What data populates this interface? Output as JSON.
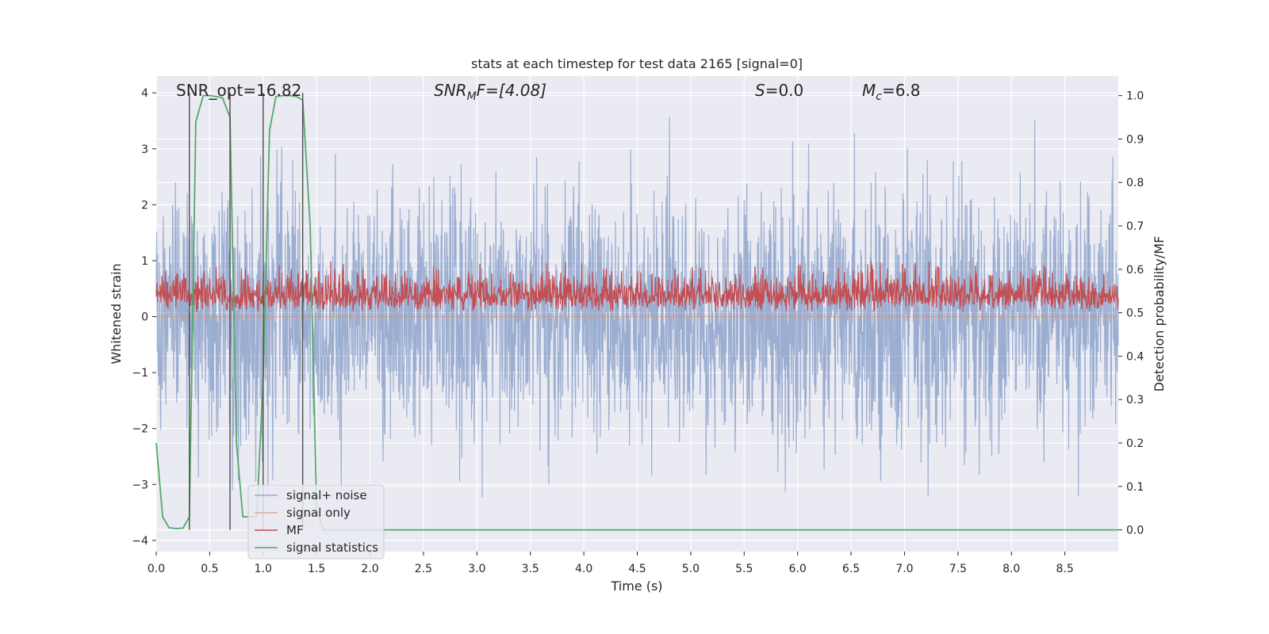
{
  "chart_data": {
    "type": "line",
    "title": "stats at each timestep for test data 2165 [signal=0]",
    "xlabel": "Time (s)",
    "ylabel_left": "Whitened strain",
    "ylabel_right": "Detection probability/MF",
    "xlim": [
      0.0,
      9.0
    ],
    "ylim_left": [
      -4.2,
      4.3
    ],
    "ylim_right": [
      -0.05,
      1.045
    ],
    "x_ticks": [
      0.0,
      0.5,
      1.0,
      1.5,
      2.0,
      2.5,
      3.0,
      3.5,
      4.0,
      4.5,
      5.0,
      5.5,
      6.0,
      6.5,
      7.0,
      7.5,
      8.0,
      8.5
    ],
    "x_tick_labels": [
      "0.0",
      "0.5",
      "1.0",
      "1.5",
      "2.0",
      "2.5",
      "3.0",
      "3.5",
      "4.0",
      "4.5",
      "5.0",
      "5.5",
      "6.0",
      "6.5",
      "7.0",
      "7.5",
      "8.0",
      "8.5"
    ],
    "y_left_ticks": [
      4,
      3,
      2,
      1,
      0,
      -1,
      -2,
      -3,
      -4
    ],
    "y_left_tick_labels": [
      "4",
      "3",
      "2",
      "1",
      "0",
      "−1",
      "−2",
      "−3",
      "−4"
    ],
    "y_right_ticks": [
      1.0,
      0.9,
      0.8,
      0.7,
      0.6,
      0.5,
      0.4,
      0.3,
      0.2,
      0.1,
      0.0
    ],
    "y_right_tick_labels": [
      "1.0",
      "0.9",
      "0.8",
      "0.7",
      "0.6",
      "0.5",
      "0.4",
      "0.3",
      "0.2",
      "0.1",
      "0.0"
    ],
    "grid": true,
    "legend_position": "lower-left",
    "annotations": {
      "snr_opt": "SNR_opt=16.82",
      "snr_mf_var": "SNR",
      "snr_mf_sub": "M",
      "snr_mf_rest": "F=[4.08]",
      "s_var": "S",
      "s_rest": "=0.0",
      "mc_var": "M",
      "mc_sub": "c",
      "mc_rest": "=6.8"
    },
    "series": [
      {
        "name": "signal+ noise",
        "color": "#4c72b0",
        "axis": "left",
        "note_range": [
          -4.0,
          3.9
        ]
      },
      {
        "name": "signal only",
        "color": "#dd8452",
        "axis": "left",
        "values_flat": 0
      },
      {
        "name": "MF",
        "color": "#c44e52",
        "axis": "right",
        "range": [
          0.5,
          0.62
        ]
      },
      {
        "name": "signal statistics",
        "color": "#55a868",
        "axis": "right",
        "x": [
          0.0,
          0.06,
          0.12,
          0.19,
          0.25,
          0.31,
          0.37,
          0.44,
          0.5,
          0.56,
          0.62,
          0.69,
          0.75,
          0.81,
          0.87,
          0.94,
          1.0,
          1.06,
          1.12,
          1.19,
          1.25,
          1.31,
          1.37,
          1.44,
          1.5,
          1.56,
          1.62,
          1.69,
          1.75,
          9.0
        ],
        "y": [
          0.2,
          0.03,
          0.005,
          0.003,
          0.004,
          0.03,
          0.94,
          1.0,
          1.0,
          0.998,
          0.995,
          0.95,
          0.2,
          0.03,
          0.03,
          0.03,
          0.35,
          0.92,
          0.998,
          1.0,
          1.0,
          0.998,
          0.99,
          0.7,
          0.05,
          0.0,
          0.0,
          0.0,
          0.0,
          0.0
        ]
      }
    ],
    "vlines": [
      0.31,
      0.69,
      1.0,
      1.37
    ]
  }
}
